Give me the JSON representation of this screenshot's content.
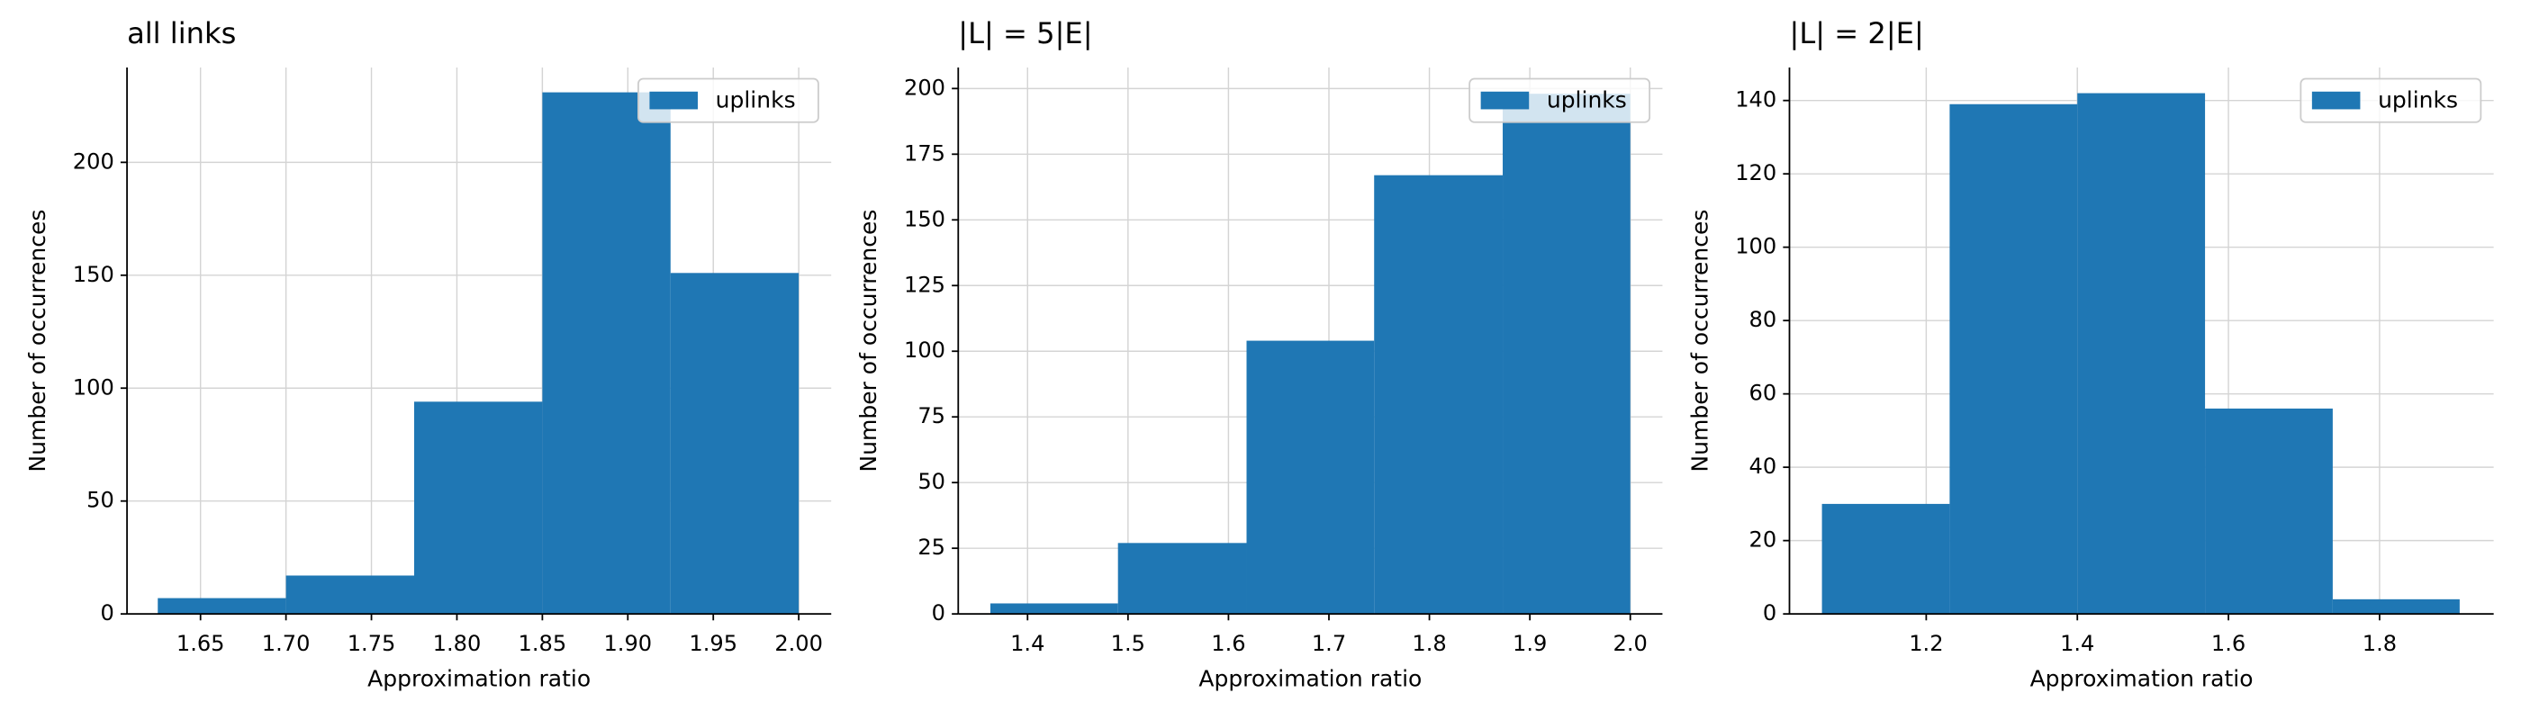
{
  "chart_data": [
    {
      "type": "histogram",
      "title": "all links",
      "xlabel": "Approximation ratio",
      "ylabel": "Number of occurrences",
      "bins": [
        1.625,
        1.7,
        1.775,
        1.85,
        1.925,
        2.0
      ],
      "series": [
        {
          "name": "uplinks",
          "color": "#1f77b4",
          "values": [
            7,
            17,
            94,
            231,
            151
          ]
        }
      ],
      "xlim": [
        1.607,
        2.019
      ],
      "ylim": [
        0,
        242
      ],
      "xticks": [
        1.65,
        {
          "value": 1.7,
          "label": "1.70"
        },
        1.75,
        {
          "value": 1.8,
          "label": "1.80"
        },
        1.85,
        {
          "value": 1.9,
          "label": "1.90"
        },
        1.95,
        {
          "value": 2.0,
          "label": "2.00"
        }
      ],
      "yticks": [
        0,
        50,
        100,
        150,
        200
      ],
      "grid": true,
      "legend": "upper right"
    },
    {
      "type": "histogram",
      "title": "|L| = 5|E|",
      "xlabel": "Approximation ratio",
      "ylabel": "Number of occurrences",
      "bins": [
        1.363,
        1.49,
        1.618,
        1.745,
        1.873,
        2.0
      ],
      "series": [
        {
          "name": "uplinks",
          "color": "#1f77b4",
          "values": [
            4,
            27,
            104,
            167,
            198
          ]
        }
      ],
      "xlim": [
        1.331,
        2.032
      ],
      "ylim": [
        0,
        208
      ],
      "xticks": [
        1.4,
        1.5,
        1.6,
        1.7,
        1.8,
        1.9,
        {
          "value": 2.0,
          "label": "2.0"
        }
      ],
      "yticks": [
        0,
        25,
        50,
        75,
        100,
        125,
        150,
        175,
        200
      ],
      "grid": true,
      "legend": "upper right"
    },
    {
      "type": "histogram",
      "title": "|L| = 2|E|",
      "xlabel": "Approximation ratio",
      "ylabel": "Number of occurrences",
      "bins": [
        1.062,
        1.231,
        1.4,
        1.569,
        1.738,
        1.906
      ],
      "series": [
        {
          "name": "uplinks",
          "color": "#1f77b4",
          "values": [
            30,
            139,
            142,
            56,
            4
          ]
        }
      ],
      "xlim": [
        1.019,
        1.951
      ],
      "ylim": [
        0,
        149
      ],
      "xticks": [
        1.2,
        1.4,
        1.6,
        1.8
      ],
      "yticks": [
        0,
        20,
        40,
        60,
        80,
        100,
        120,
        140
      ],
      "grid": true,
      "legend": "upper right"
    }
  ]
}
